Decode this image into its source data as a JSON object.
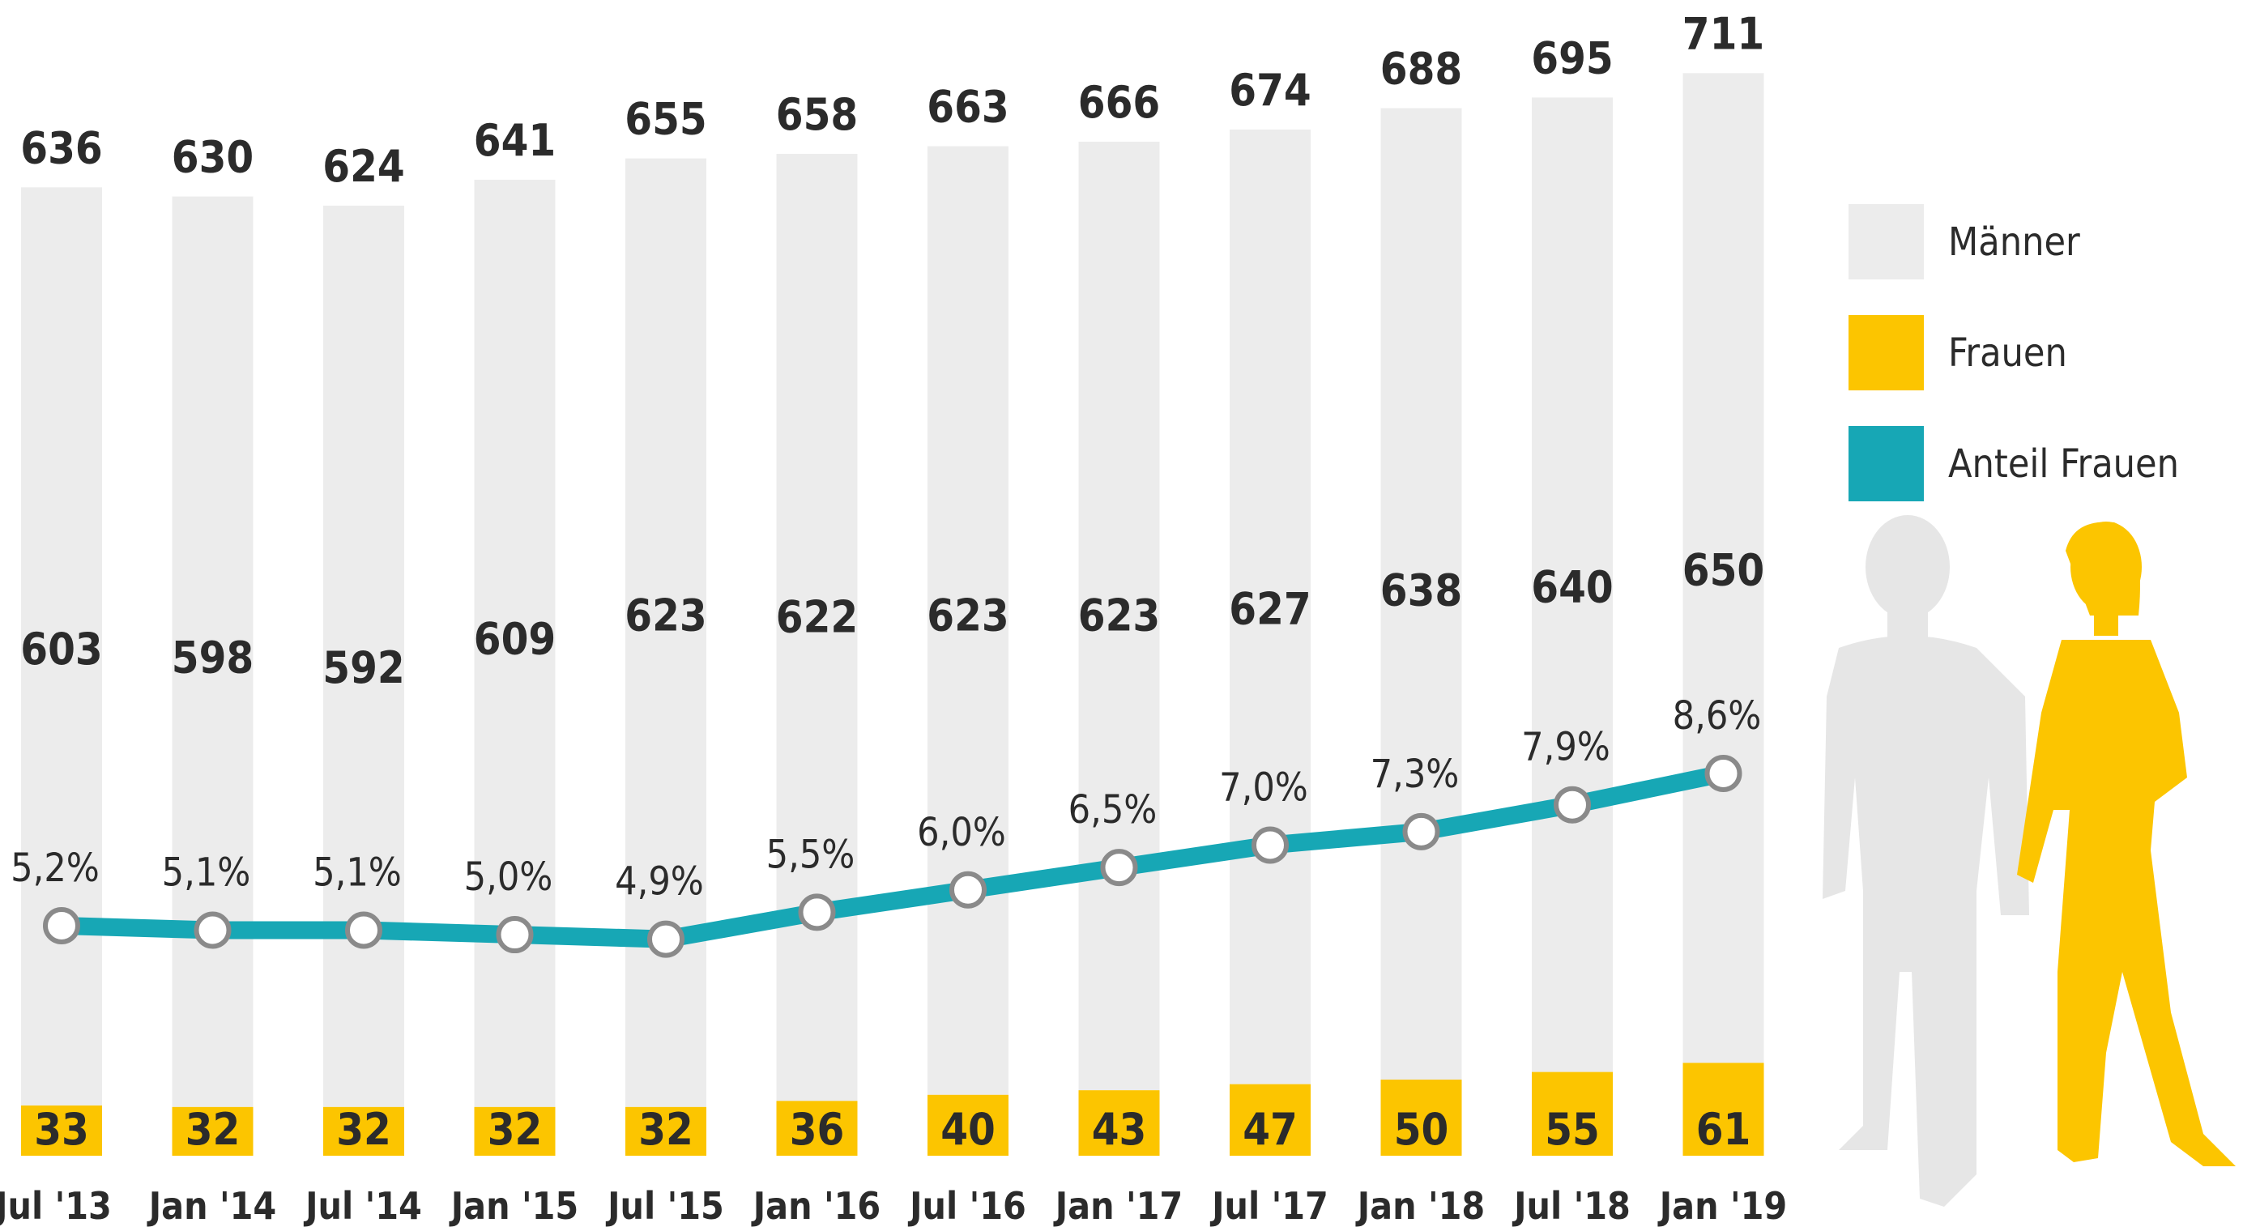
{
  "chart_data": {
    "type": "bar",
    "stacked": true,
    "categories": [
      "Jul '13",
      "Jan '14",
      "Jul '14",
      "Jan '15",
      "Jul '15",
      "Jan '16",
      "Jul '16",
      "Jan '17",
      "Jul '17",
      "Jan '18",
      "Jul '18",
      "Jan '19"
    ],
    "totals": [
      636,
      630,
      624,
      641,
      655,
      658,
      663,
      666,
      674,
      688,
      695,
      711
    ],
    "series": [
      {
        "name": "Männer",
        "type": "bar",
        "color": "#ececec",
        "values": [
          603,
          598,
          592,
          609,
          623,
          622,
          623,
          623,
          627,
          638,
          640,
          650
        ]
      },
      {
        "name": "Frauen",
        "type": "bar",
        "color": "#fcc500",
        "values": [
          33,
          32,
          32,
          32,
          32,
          36,
          40,
          43,
          47,
          50,
          55,
          61
        ]
      },
      {
        "name": "Anteil Frauen",
        "type": "line",
        "color": "#17a7b5",
        "values": [
          5.2,
          5.1,
          5.1,
          5.0,
          4.9,
          5.5,
          6.0,
          6.5,
          7.0,
          7.3,
          7.9,
          8.6
        ],
        "labels": [
          "5,2%",
          "5,1%",
          "5,1%",
          "5,0%",
          "4,9%",
          "5,5%",
          "6,0%",
          "6,5%",
          "7,0%",
          "7,3%",
          "7,9%",
          "8,6%"
        ]
      }
    ],
    "legend": {
      "placement": "right",
      "entries": [
        "Männer",
        "Frauen",
        "Anteil Frauen"
      ]
    },
    "grid": false,
    "title": "",
    "xlabel": "",
    "ylabel": ""
  }
}
